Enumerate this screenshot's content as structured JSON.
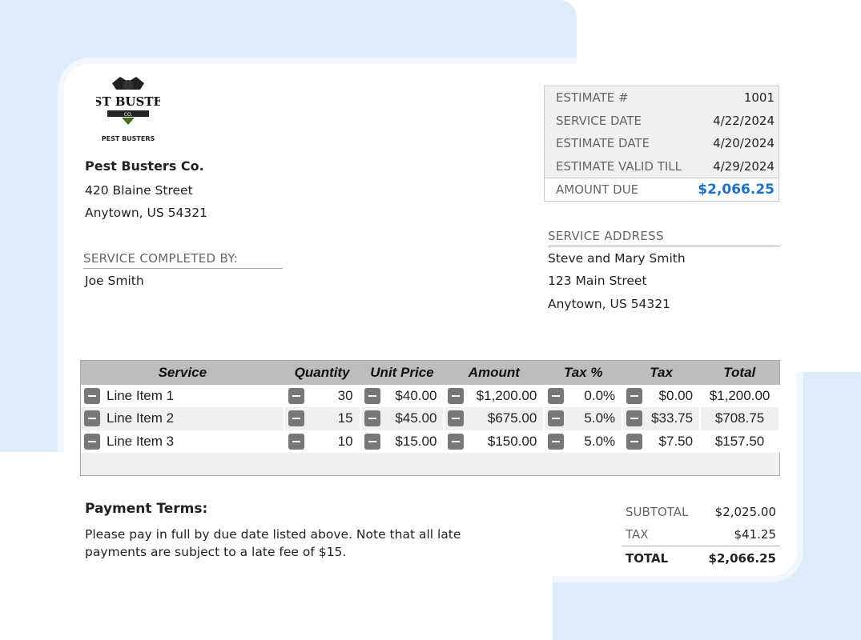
{
  "company": {
    "logo_text": "PEST BUSTERS CO.",
    "name": "Pest Busters Co.",
    "street": "420 Blaine Street",
    "city": "Anytown, US 54321"
  },
  "completed_by": {
    "label": "SERVICE COMPLETED BY:",
    "name": "Joe Smith"
  },
  "estimate": {
    "rows": [
      {
        "k": "ESTIMATE #",
        "v": "1001"
      },
      {
        "k": "SERVICE DATE",
        "v": "4/22/2024"
      },
      {
        "k": "ESTIMATE DATE",
        "v": "4/20/2024"
      },
      {
        "k": "ESTIMATE VALID TILL",
        "v": "4/29/2024"
      }
    ],
    "due_label": "AMOUNT DUE",
    "due_value": "$2,066.25",
    "accent": "#1a73c8"
  },
  "service_address": {
    "label": "SERVICE ADDRESS",
    "name": "Steve and Mary Smith",
    "street": "123 Main Street",
    "city": "Anytown, US 54321"
  },
  "table": {
    "headers": [
      "Service",
      "Quantity",
      "Unit Price",
      "Amount",
      "Tax %",
      "Tax",
      "Total"
    ],
    "rows": [
      [
        "Line Item 1",
        "30",
        "$40.00",
        "$1,200.00",
        "0.0%",
        "$0.00",
        "$1,200.00"
      ],
      [
        "Line Item 2",
        "15",
        "$45.00",
        "$675.00",
        "5.0%",
        "$33.75",
        "$708.75"
      ],
      [
        "Line Item 3",
        "10",
        "$15.00",
        "$150.00",
        "5.0%",
        "$7.50",
        "$157.50"
      ]
    ]
  },
  "payment": {
    "title": "Payment Terms:",
    "text": "Please pay in full by due date listed above. Note that all late payments are subject to a late fee of $15."
  },
  "totals": {
    "subtotal_label": "SUBTOTAL",
    "subtotal": "$2,025.00",
    "tax_label": "TAX",
    "tax": "$41.25",
    "total_label": "TOTAL",
    "total": "$2,066.25"
  }
}
